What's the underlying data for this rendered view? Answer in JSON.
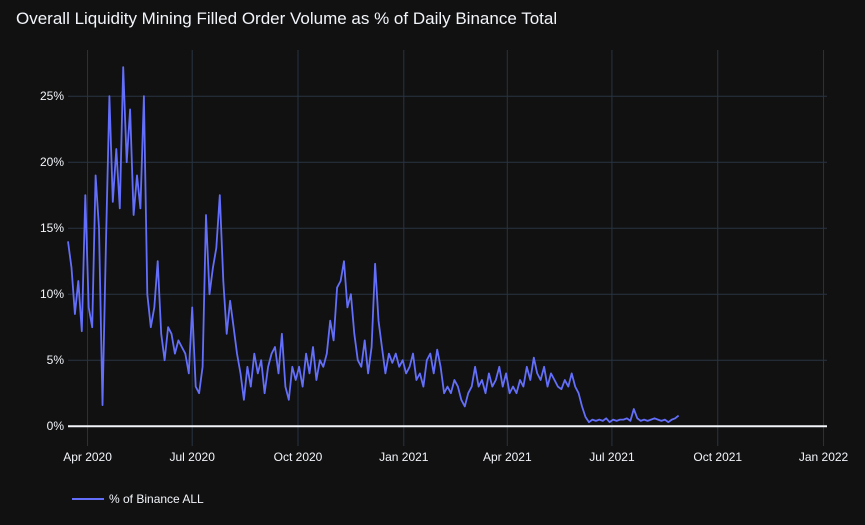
{
  "chart_data": {
    "type": "line",
    "title": "Overall Liquidity Mining Filled Order Volume as % of Daily Binance Total",
    "xlabel": "",
    "ylabel": "",
    "x_range": [
      "2020-03-15",
      "2022-01-04"
    ],
    "ylim": [
      -1.5,
      28.5
    ],
    "y_ticks": [
      0,
      5,
      10,
      15,
      20,
      25
    ],
    "y_tick_labels": [
      "0%",
      "5%",
      "10%",
      "15%",
      "20%",
      "25%"
    ],
    "x_ticks": [
      "2020-04-01",
      "2020-07-01",
      "2020-10-01",
      "2021-01-01",
      "2021-04-01",
      "2021-07-01",
      "2021-10-01",
      "2022-01-01"
    ],
    "x_tick_labels": [
      "Apr 2020",
      "Jul 2020",
      "Oct 2020",
      "Jan 2021",
      "Apr 2021",
      "Jul 2021",
      "Oct 2021",
      "Jan 2022"
    ],
    "grid": true,
    "zero_line": true,
    "legend": {
      "position": "bottom-left",
      "entries": [
        "% of Binance ALL"
      ]
    },
    "series": [
      {
        "name": "% of Binance ALL",
        "color": "#636efa",
        "x_start": "2020-03-15",
        "step_days": 3,
        "values": [
          14.0,
          12.0,
          8.5,
          11.0,
          7.2,
          17.5,
          9.0,
          7.5,
          19.0,
          15.0,
          1.6,
          14.0,
          25.0,
          17.0,
          21.0,
          16.5,
          27.2,
          20.0,
          24.0,
          16.0,
          19.0,
          16.5,
          25.0,
          10.0,
          7.5,
          9.0,
          12.5,
          7.0,
          5.0,
          7.5,
          7.0,
          5.5,
          6.5,
          6.0,
          5.5,
          4.0,
          9.0,
          3.0,
          2.5,
          4.5,
          16.0,
          10.0,
          12.0,
          13.5,
          17.5,
          11.0,
          7.0,
          9.5,
          7.5,
          5.5,
          4.0,
          2.0,
          4.5,
          3.0,
          5.5,
          4.0,
          5.0,
          2.5,
          4.5,
          5.5,
          6.0,
          4.0,
          7.0,
          3.0,
          2.0,
          4.5,
          3.5,
          4.5,
          3.0,
          5.5,
          4.0,
          6.0,
          3.5,
          5.0,
          4.5,
          5.5,
          8.0,
          6.5,
          10.5,
          11.0,
          12.5,
          9.0,
          10.0,
          7.0,
          5.0,
          4.5,
          6.5,
          4.0,
          6.0,
          12.3,
          8.0,
          6.0,
          4.0,
          5.5,
          4.8,
          5.5,
          4.5,
          5.0,
          4.0,
          4.5,
          5.5,
          3.5,
          4.0,
          3.0,
          5.0,
          5.5,
          4.0,
          5.8,
          4.5,
          2.5,
          3.0,
          2.5,
          3.5,
          3.0,
          2.0,
          1.5,
          2.5,
          3.0,
          4.5,
          3.0,
          3.5,
          2.5,
          4.0,
          3.0,
          3.5,
          4.5,
          3.0,
          4.0,
          2.5,
          3.0,
          2.5,
          3.5,
          3.0,
          4.5,
          3.5,
          5.2,
          4.0,
          3.5,
          4.5,
          3.0,
          4.0,
          3.5,
          3.0,
          2.8,
          3.5,
          3.0,
          4.0,
          3.0,
          2.5,
          1.5,
          0.7,
          0.3,
          0.5,
          0.4,
          0.5,
          0.4,
          0.6,
          0.3,
          0.5,
          0.4,
          0.5,
          0.5,
          0.6,
          0.4,
          1.3,
          0.6,
          0.4,
          0.5,
          0.4,
          0.5,
          0.6,
          0.5,
          0.4,
          0.5,
          0.3,
          0.5,
          0.6,
          0.8
        ]
      }
    ]
  }
}
